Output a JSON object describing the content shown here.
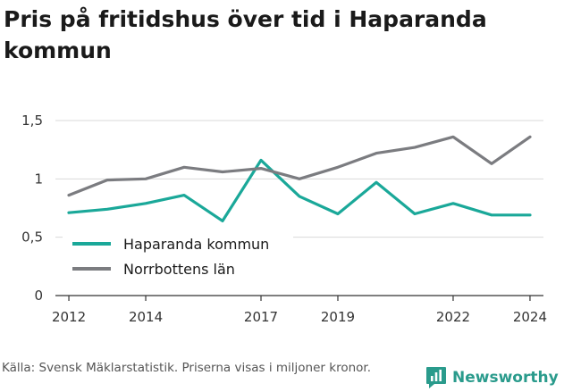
{
  "title": "Pris på fritidshus över tid i Haparanda kommun",
  "footer": "Källa: Svensk Mäklarstatistik. Priserna visas i miljoner kronor.",
  "brand": {
    "name": "Newsworthy",
    "color": "#2a9b8c"
  },
  "colors": {
    "series_1": "#1aa899",
    "series_2": "#7b7c80",
    "grid": "#d9d9d9",
    "axis": "#333333"
  },
  "chart_data": {
    "type": "line",
    "title": "Pris på fritidshus över tid i Haparanda kommun",
    "xlabel": "",
    "ylabel": "",
    "xlim": [
      2012,
      2024
    ],
    "ylim": [
      0,
      1.5
    ],
    "x_ticks": [
      2012,
      2014,
      2017,
      2019,
      2022,
      2024
    ],
    "y_ticks": [
      {
        "value": 0,
        "label": "0"
      },
      {
        "value": 0.5,
        "label": "0,5"
      },
      {
        "value": 1,
        "label": "1"
      },
      {
        "value": 1.5,
        "label": "1,5"
      }
    ],
    "grid": "horizontal",
    "legend_position": "bottom-left",
    "series": [
      {
        "name": "Haparanda kommun",
        "color": "#1aa899",
        "points": [
          [
            2012,
            0.71
          ],
          [
            2013,
            0.74
          ],
          [
            2014,
            0.79
          ],
          [
            2015,
            0.86
          ],
          [
            2016,
            0.64
          ],
          [
            2017,
            1.16
          ],
          [
            2018,
            0.85
          ],
          [
            2019,
            0.7
          ],
          [
            2020,
            0.97
          ],
          [
            2021,
            0.7
          ],
          [
            2022,
            0.79
          ],
          [
            2023,
            0.69
          ],
          [
            2024,
            0.69
          ]
        ]
      },
      {
        "name": "Norrbottens län",
        "color": "#7b7c80",
        "points": [
          [
            2012,
            0.86
          ],
          [
            2013,
            0.99
          ],
          [
            2014,
            1.0
          ],
          [
            2015,
            1.1
          ],
          [
            2016,
            1.06
          ],
          [
            2017,
            1.09
          ],
          [
            2018,
            1.0
          ],
          [
            2019,
            1.1
          ],
          [
            2020,
            1.22
          ],
          [
            2021,
            1.27
          ],
          [
            2022,
            1.36
          ],
          [
            2023,
            1.13
          ],
          [
            2024,
            1.36
          ]
        ]
      }
    ]
  }
}
